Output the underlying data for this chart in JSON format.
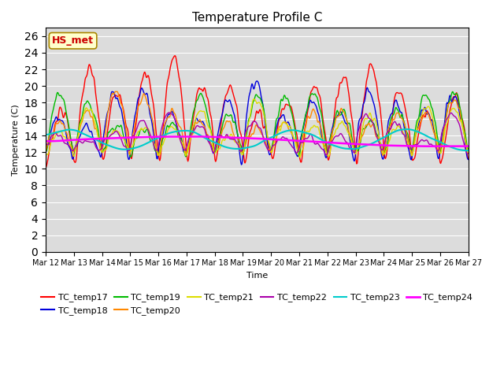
{
  "title": "Temperature Profile C",
  "xlabel": "Time",
  "ylabel": "Temperature (C)",
  "ylim": [
    0,
    27
  ],
  "yticks": [
    0,
    2,
    4,
    6,
    8,
    10,
    12,
    14,
    16,
    18,
    20,
    22,
    24,
    26
  ],
  "bg_color": "#dcdcdc",
  "annotation_text": "HS_met",
  "annotation_color": "#cc0000",
  "annotation_bg": "#ffffcc",
  "annotation_edge": "#aa8800",
  "series_colors": {
    "TC_temp17": "#ff0000",
    "TC_temp18": "#0000dd",
    "TC_temp19": "#00bb00",
    "TC_temp20": "#ff8800",
    "TC_temp21": "#dddd00",
    "TC_temp22": "#aa00aa",
    "TC_temp23": "#00cccc",
    "TC_temp24": "#ff00ff"
  },
  "x_tick_labels": [
    "Mar 12",
    "Mar 13",
    "Mar 14",
    "Mar 15",
    "Mar 16",
    "Mar 17",
    "Mar 18",
    "Mar 19",
    "Mar 20",
    "Mar 21",
    "Mar 22",
    "Mar 23",
    "Mar 24",
    "Mar 25",
    "Mar 26",
    "Mar 27"
  ],
  "n_points": 720,
  "start_day": 0,
  "end_day": 15,
  "figsize": [
    6.4,
    4.8
  ],
  "dpi": 100
}
